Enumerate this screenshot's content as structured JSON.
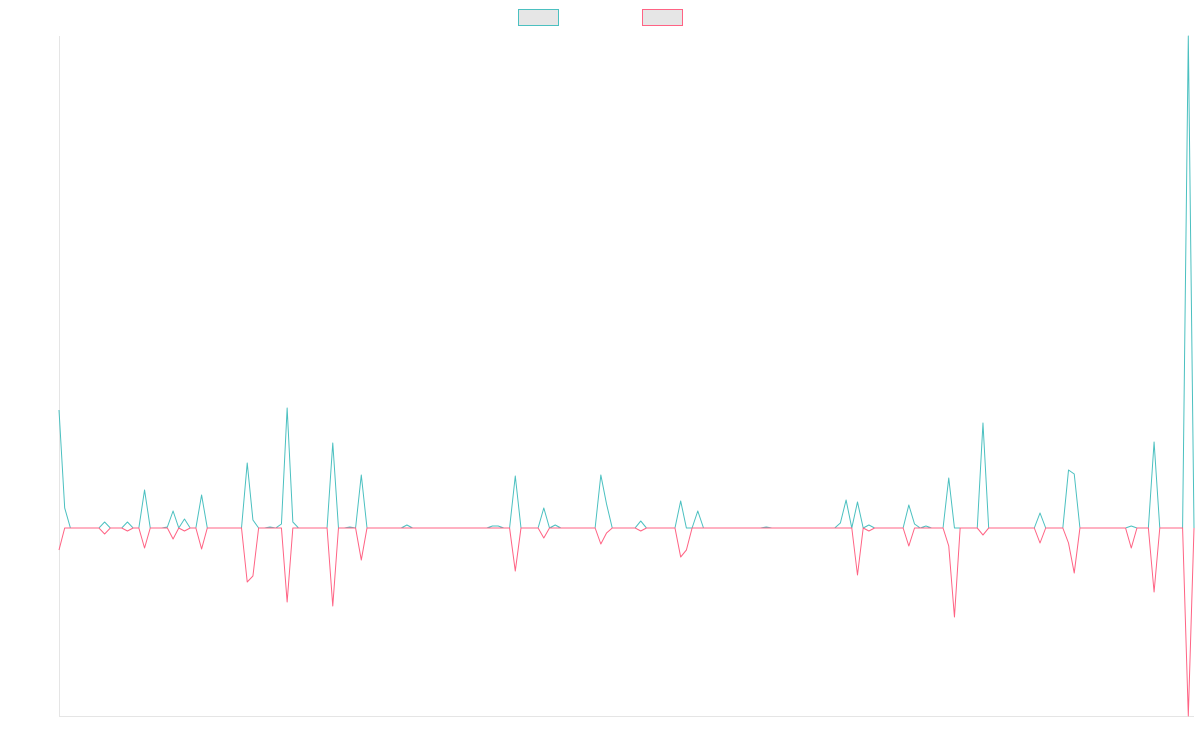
{
  "chart_data": {
    "type": "line",
    "ylim": [
      -188,
      492
    ],
    "legend": "top",
    "series": [
      {
        "color": "#4bc0c0",
        "values": [
          118,
          20,
          0,
          0,
          0,
          0,
          0,
          0,
          6,
          0,
          0,
          0,
          6,
          0,
          0,
          38,
          0,
          0,
          0,
          1,
          17,
          0,
          9,
          0,
          0,
          33,
          0,
          0,
          0,
          0,
          0,
          0,
          0,
          65,
          8,
          0,
          0,
          1,
          0,
          4,
          120,
          6,
          0,
          0,
          0,
          0,
          0,
          0,
          85,
          0,
          0,
          1,
          0,
          53,
          0,
          0,
          0,
          0,
          0,
          0,
          0,
          3,
          0,
          0,
          0,
          0,
          0,
          0,
          0,
          0,
          0,
          0,
          0,
          0,
          0,
          0,
          2,
          2,
          0,
          0,
          52,
          0,
          0,
          0,
          0,
          20,
          0,
          3,
          0,
          0,
          0,
          0,
          0,
          0,
          0,
          53,
          24,
          0,
          0,
          0,
          0,
          0,
          7,
          0,
          0,
          0,
          0,
          0,
          0,
          27,
          0,
          0,
          17,
          0,
          0,
          0,
          0,
          0,
          0,
          0,
          0,
          0,
          0,
          0,
          1,
          0,
          0,
          0,
          0,
          0,
          0,
          0,
          0,
          0,
          0,
          0,
          0,
          5,
          28,
          0,
          26,
          0,
          3,
          0,
          0,
          0,
          0,
          0,
          0,
          23,
          4,
          0,
          2,
          0,
          0,
          0,
          50,
          0,
          0,
          0,
          0,
          0,
          105,
          0,
          0,
          0,
          0,
          0,
          0,
          0,
          0,
          0,
          15,
          0,
          0,
          0,
          0,
          58,
          54,
          0,
          0,
          0,
          0,
          0,
          0,
          0,
          0,
          0,
          2,
          0,
          0,
          0,
          86,
          0,
          0,
          0,
          0,
          0,
          492,
          0
        ]
      },
      {
        "color": "#ff6384",
        "values": [
          -22,
          0,
          0,
          0,
          0,
          0,
          0,
          0,
          -6,
          0,
          0,
          0,
          -3,
          0,
          0,
          -20,
          0,
          0,
          0,
          0,
          -11,
          0,
          -3,
          0,
          0,
          -21,
          0,
          0,
          0,
          0,
          0,
          0,
          0,
          -54,
          -48,
          0,
          0,
          0,
          0,
          0,
          -74,
          0,
          0,
          0,
          0,
          0,
          0,
          0,
          -78,
          0,
          0,
          0,
          0,
          -32,
          0,
          0,
          0,
          0,
          0,
          0,
          0,
          0,
          0,
          0,
          0,
          0,
          0,
          0,
          0,
          0,
          0,
          0,
          0,
          0,
          0,
          0,
          0,
          0,
          0,
          0,
          -43,
          0,
          0,
          0,
          0,
          -10,
          0,
          0,
          0,
          0,
          0,
          0,
          0,
          0,
          0,
          -16,
          -5,
          0,
          0,
          0,
          0,
          0,
          -3,
          0,
          0,
          0,
          0,
          0,
          0,
          -29,
          -22,
          0,
          0,
          0,
          0,
          0,
          0,
          0,
          0,
          0,
          0,
          0,
          0,
          0,
          0,
          0,
          0,
          0,
          0,
          0,
          0,
          0,
          0,
          0,
          0,
          0,
          0,
          0,
          0,
          0,
          -47,
          0,
          -3,
          0,
          0,
          0,
          0,
          0,
          0,
          -18,
          0,
          0,
          0,
          0,
          0,
          0,
          -18,
          -89,
          0,
          0,
          0,
          0,
          -7,
          0,
          0,
          0,
          0,
          0,
          0,
          0,
          0,
          0,
          -15,
          0,
          0,
          0,
          0,
          -15,
          -45,
          0,
          0,
          0,
          0,
          0,
          0,
          0,
          0,
          0,
          -20,
          0,
          0,
          0,
          -64,
          0,
          0,
          0,
          0,
          0,
          -188,
          0
        ]
      }
    ]
  }
}
